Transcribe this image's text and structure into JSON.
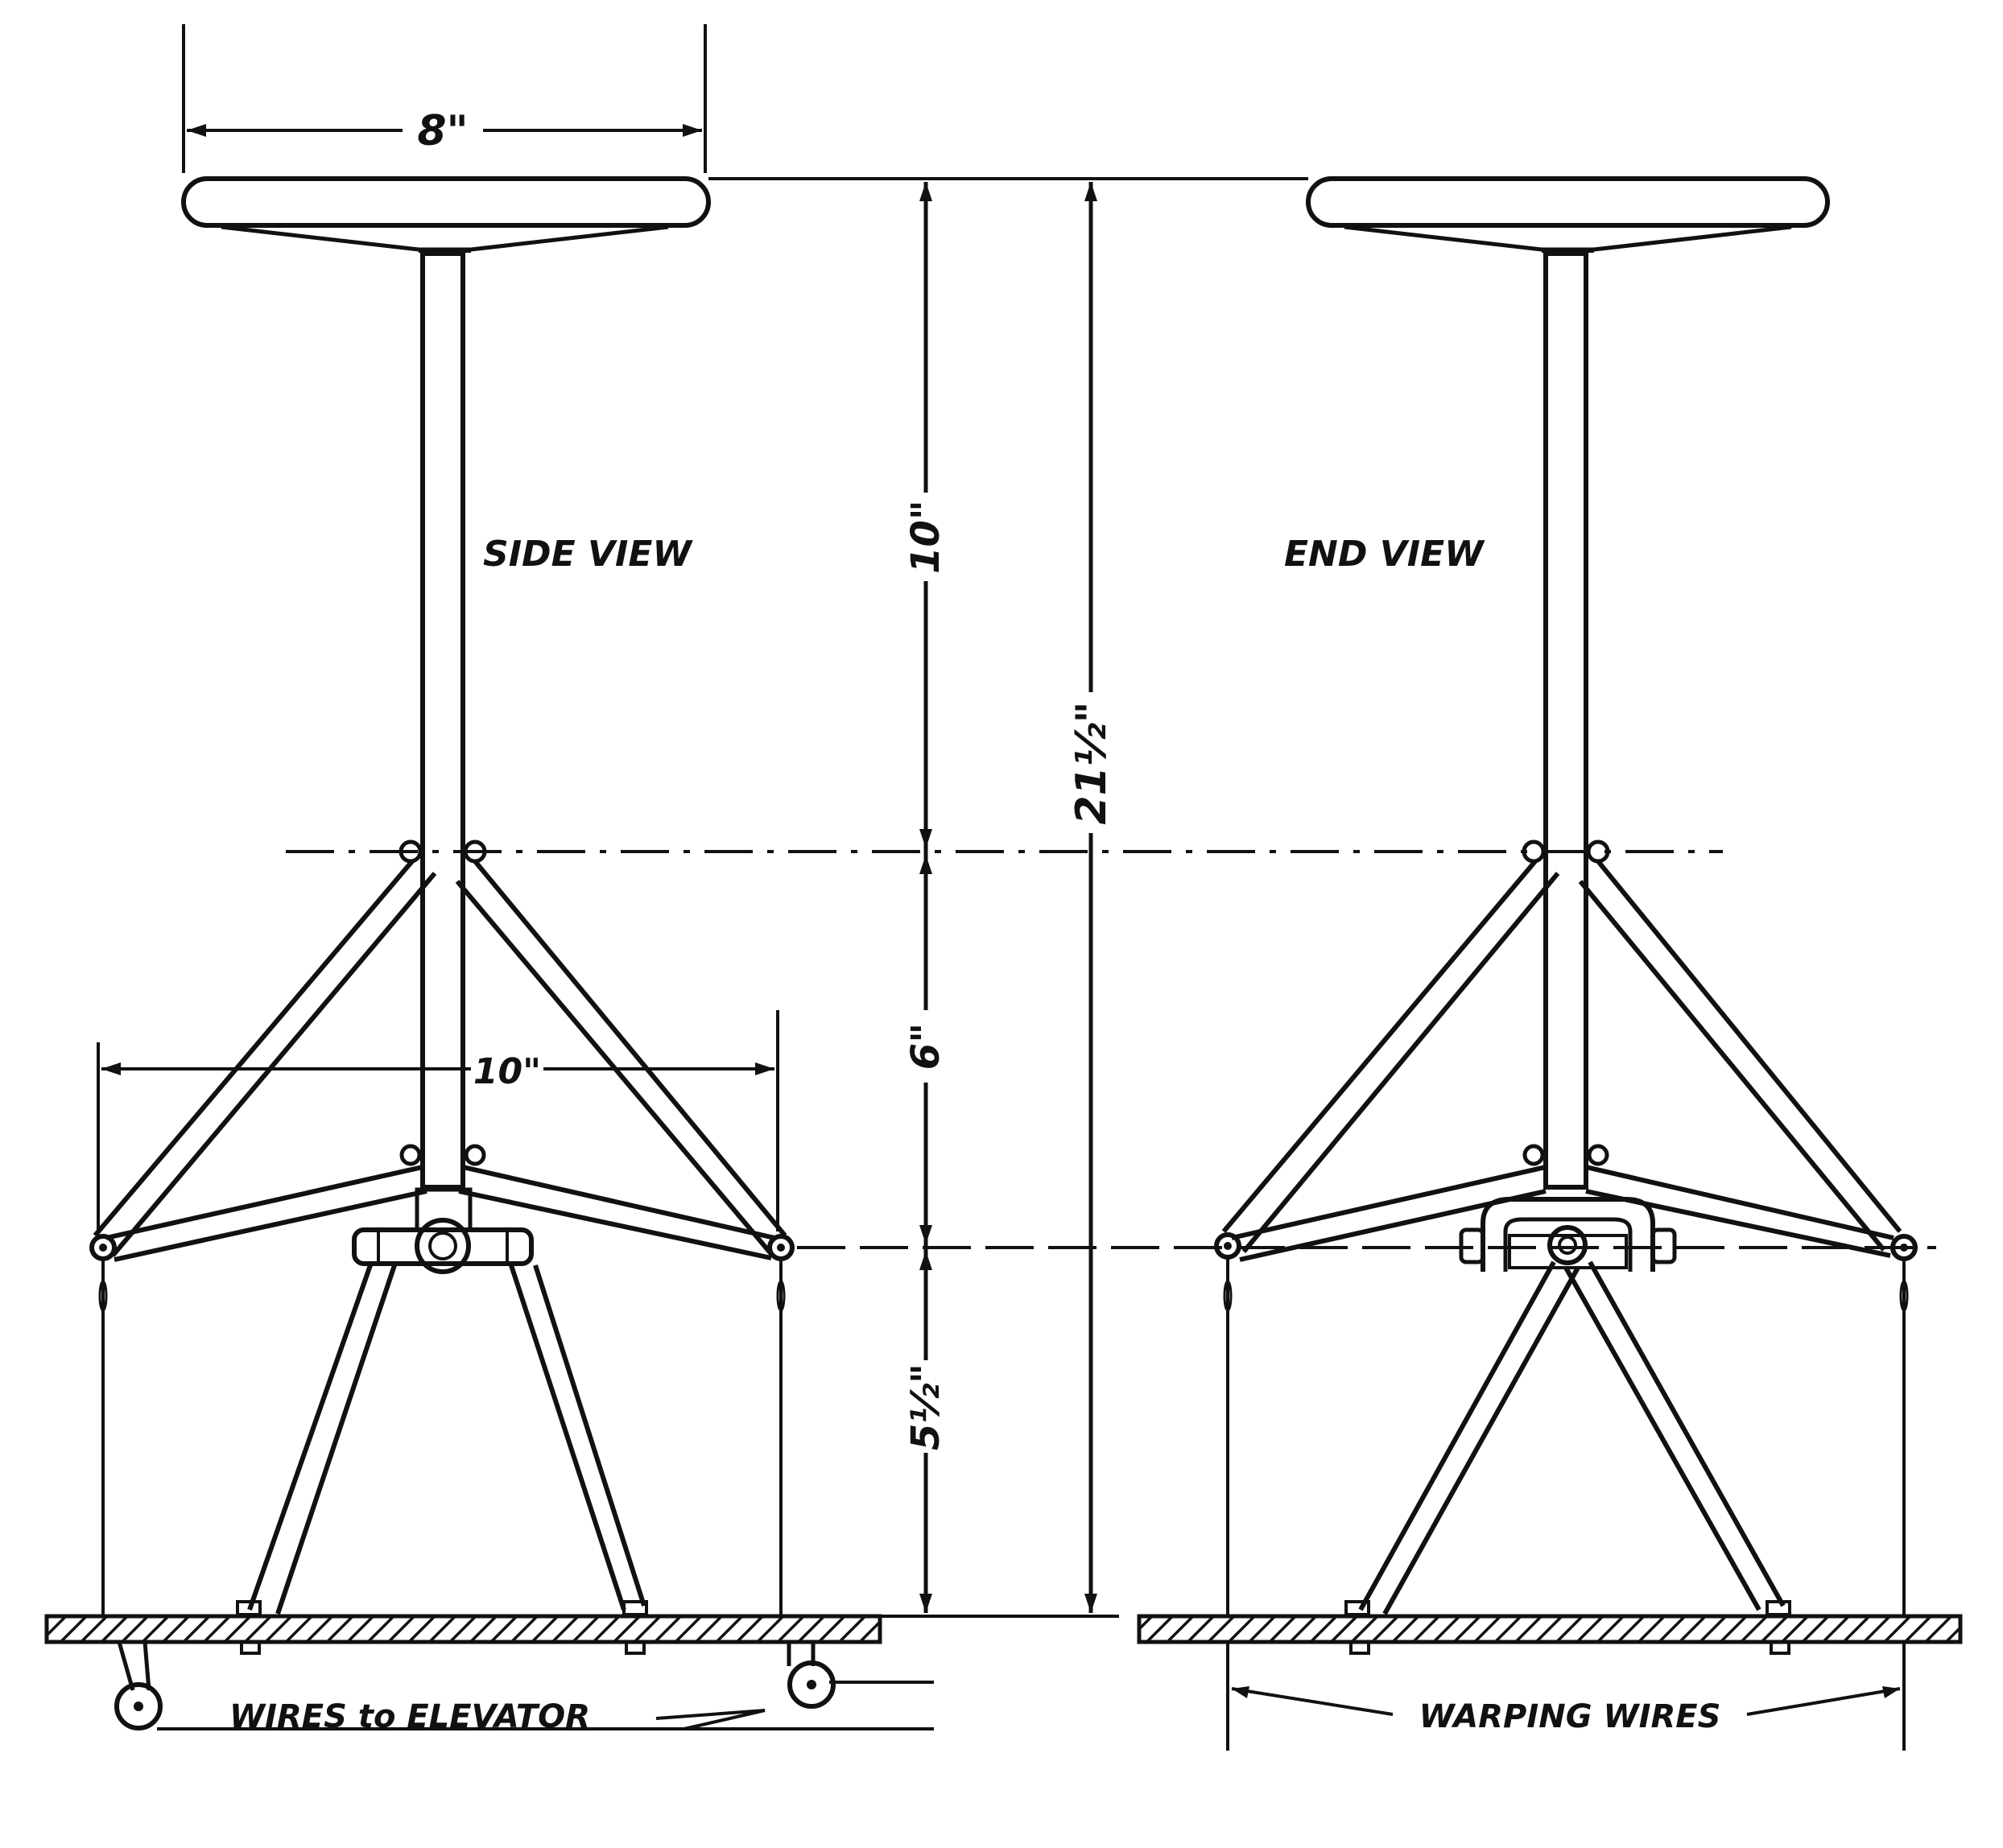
{
  "views": {
    "side": {
      "label": "SIDE VIEW"
    },
    "end": {
      "label": "END VIEW"
    }
  },
  "dimensions": {
    "wheel_diameter": "8\"",
    "upper_height": "10\"",
    "middle_height": "6\"",
    "lower_height": "5½\"",
    "total_height": "21½\"",
    "base_width": "10\""
  },
  "wire_labels": {
    "elevator": "WIRES to ELEVATOR",
    "warping": "WARPING WIRES"
  }
}
